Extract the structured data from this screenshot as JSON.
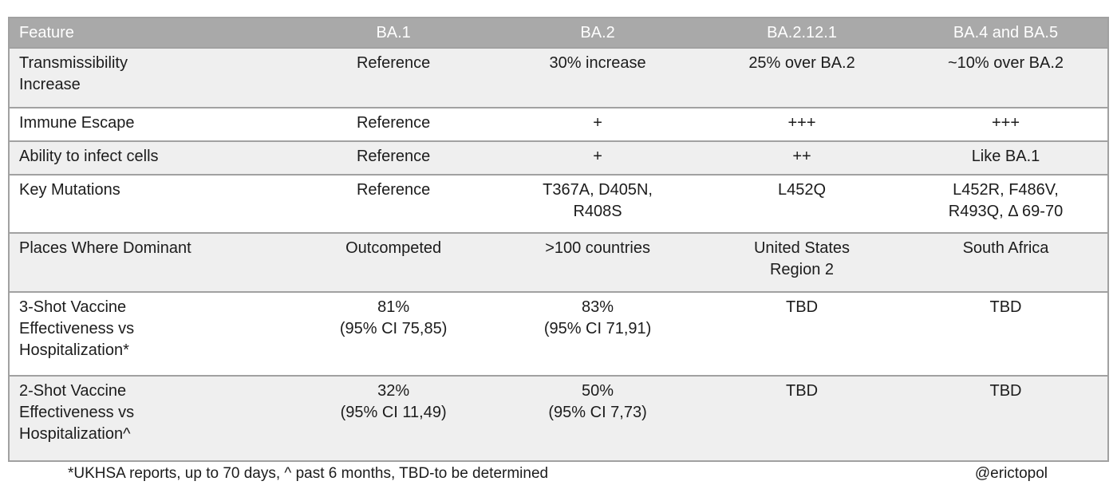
{
  "chart_data": {
    "type": "table",
    "columns": [
      "Feature",
      "BA.1",
      "BA.2",
      "BA.2.12.1",
      "BA.4 and BA.5"
    ],
    "rows": [
      {
        "feature": [
          "Transmissibility",
          "Increase"
        ],
        "values": [
          "Reference",
          "30% increase",
          "25% over BA.2",
          "~10% over BA.2"
        ]
      },
      {
        "feature": "Immune Escape",
        "values": [
          "Reference",
          "+",
          "+++",
          "+++"
        ]
      },
      {
        "feature": "Ability to infect cells",
        "values": [
          "Reference",
          "+",
          "++",
          "Like BA.1"
        ]
      },
      {
        "feature": "Key Mutations",
        "values": [
          "Reference",
          [
            "T367A, D405N,",
            "R408S"
          ],
          "L452Q",
          [
            "L452R, F486V,",
            "R493Q, Δ 69-70"
          ]
        ]
      },
      {
        "feature": "Places Where Dominant",
        "values": [
          "Outcompeted",
          ">100 countries",
          [
            "United States",
            "Region 2"
          ],
          "South Africa"
        ]
      },
      {
        "feature": [
          "3-Shot Vaccine",
          "Effectiveness vs",
          "Hospitalization*"
        ],
        "values": [
          [
            "81%",
            "(95% CI 75,85)"
          ],
          [
            "83%",
            "(95% CI 71,91)"
          ],
          "TBD",
          "TBD"
        ]
      },
      {
        "feature": [
          "2-Shot Vaccine",
          "Effectiveness vs",
          "Hospitalization^"
        ],
        "values": [
          [
            "32%",
            "(95% CI 11,49)"
          ],
          [
            "50%",
            "(95% CI 7,73)"
          ],
          "TBD",
          "TBD"
        ]
      }
    ]
  },
  "footer": {
    "footnote": "*UKHSA reports, up to 70 days, ^ past 6 months, TBD-to be determined",
    "credit": "@erictopol"
  },
  "colors": {
    "header_bg": "#a9a9a9",
    "header_text": "#ffffff",
    "row_alt_bg": "#efefef",
    "row_bg": "#ffffff",
    "border": "#a1a1a1",
    "text": "#1c1c1c"
  }
}
